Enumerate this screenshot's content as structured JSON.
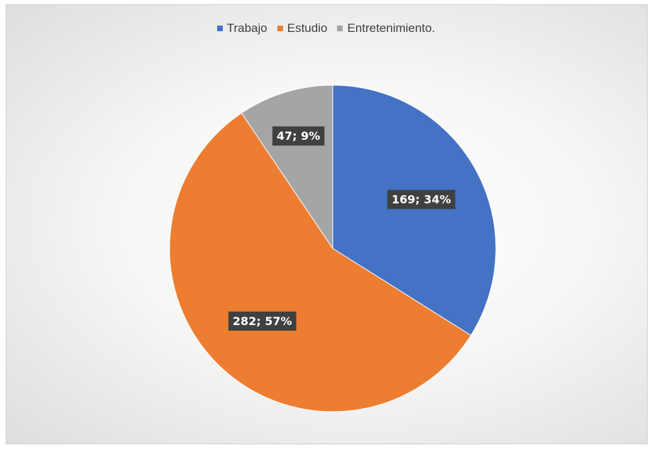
{
  "chart_data": {
    "type": "pie",
    "title": "",
    "legend_position": "top",
    "categories": [
      "Trabajo",
      "Estudio",
      "Entretenimiento."
    ],
    "values": [
      169,
      282,
      47
    ],
    "percentages": [
      "34%",
      "57%",
      "9%"
    ],
    "labels": [
      "169; 34%",
      "282; 57%",
      "47; 9%"
    ],
    "colors": [
      "#4472C4",
      "#ED7D31",
      "#A5A5A5"
    ]
  },
  "legend": {
    "items": [
      {
        "label": "Trabajo",
        "color": "#4472C4"
      },
      {
        "label": "Estudio",
        "color": "#ED7D31"
      },
      {
        "label": "Entretenimiento.",
        "color": "#A5A5A5"
      }
    ]
  }
}
